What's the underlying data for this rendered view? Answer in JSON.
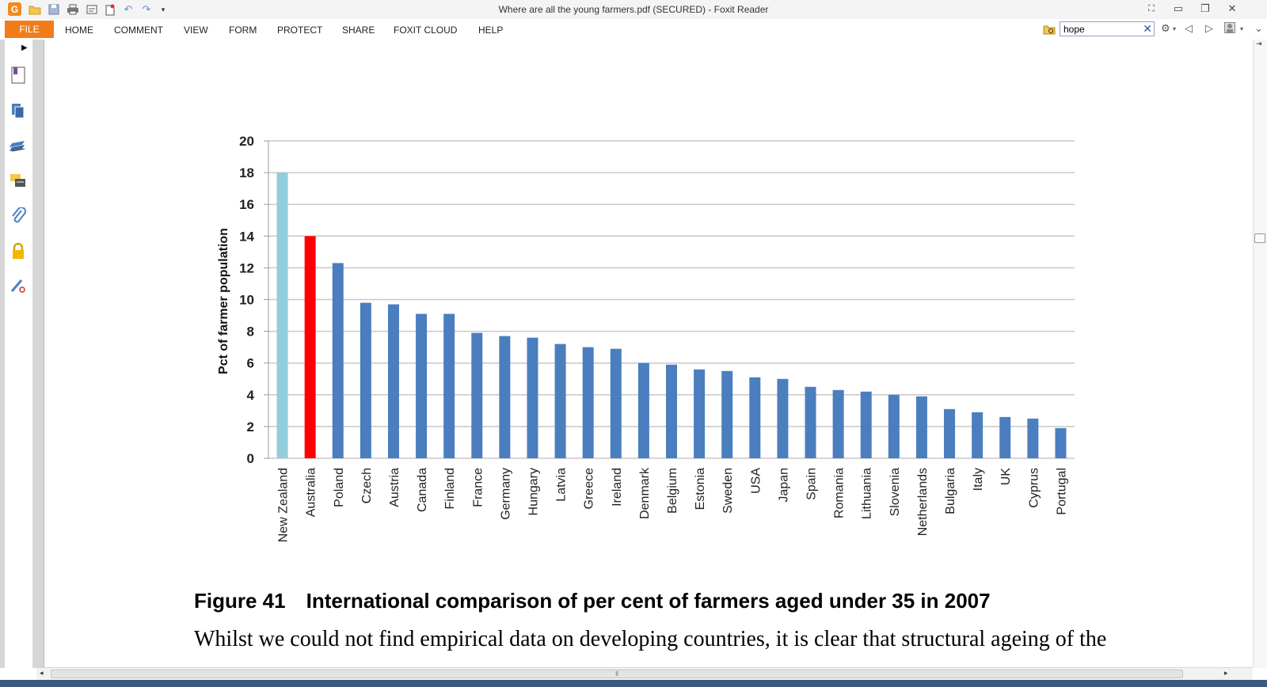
{
  "window": {
    "title": "Where are all the young farmers.pdf (SECURED) - Foxit Reader",
    "logo_letter": "G"
  },
  "menu": {
    "file": "FILE",
    "items": [
      "HOME",
      "COMMENT",
      "VIEW",
      "FORM",
      "PROTECT",
      "SHARE",
      "FOXIT CLOUD",
      "HELP"
    ]
  },
  "search": {
    "value": "hope"
  },
  "colors": {
    "accent": "#f07d19",
    "bar_default": "#4a7ebf",
    "bar_highlight_1": "#92cddc",
    "bar_highlight_2": "#ff0000"
  },
  "chart_data": {
    "type": "bar",
    "ylabel": "Pct of farmer population",
    "ylim": [
      0,
      20
    ],
    "yticks": [
      0,
      2,
      4,
      6,
      8,
      10,
      12,
      14,
      16,
      18,
      20
    ],
    "grid": true,
    "categories": [
      "New Zealand",
      "Australia",
      "Poland",
      "Czech",
      "Austria",
      "Canada",
      "Finland",
      "France",
      "Germany",
      "Hungary",
      "Latvia",
      "Greece",
      "Ireland",
      "Denmark",
      "Belgium",
      "Estonia",
      "Sweden",
      "USA",
      "Japan",
      "Spain",
      "Romania",
      "Lithuania",
      "Slovenia",
      "Netherlands",
      "Bulgaria",
      "Italy",
      "UK",
      "Cyprus",
      "Portugal"
    ],
    "values": [
      18.0,
      14.0,
      12.3,
      9.8,
      9.7,
      9.1,
      9.1,
      7.9,
      7.7,
      7.6,
      7.2,
      7.0,
      6.9,
      6.0,
      5.9,
      5.6,
      5.5,
      5.1,
      5.0,
      4.5,
      4.3,
      4.2,
      4.0,
      3.9,
      3.1,
      2.9,
      2.6,
      2.5,
      1.9
    ],
    "highlight": {
      "New Zealand": "#92cddc",
      "Australia": "#ff0000"
    }
  },
  "figure": {
    "number": "Figure 41",
    "caption": "International comparison of per cent of farmers aged under 35 in 2007"
  },
  "body": {
    "text": "Whilst we could not find empirical data on developing countries, it is clear that structural ageing of the"
  }
}
